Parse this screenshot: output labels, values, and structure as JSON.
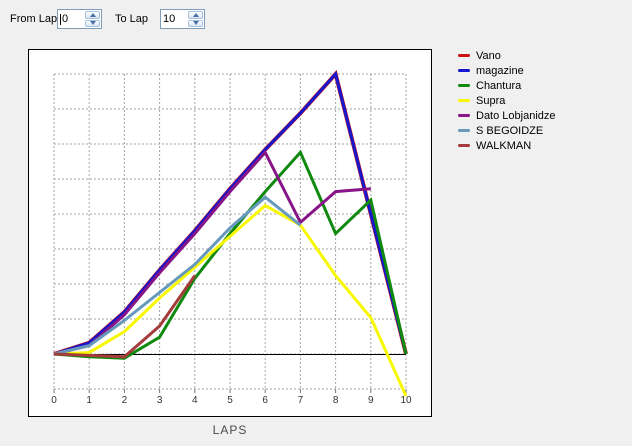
{
  "controls": {
    "from_lap_label": "From Lap",
    "from_lap_value": "0",
    "to_lap_label": "To Lap",
    "to_lap_value": "10"
  },
  "chart_data": {
    "type": "line",
    "title": "",
    "xlabel": "LAPS",
    "ylabel": "",
    "xlim": [
      0,
      10
    ],
    "ylim": [
      -25,
      112
    ],
    "x_ticks": [
      0,
      1,
      2,
      3,
      4,
      5,
      6,
      7,
      8,
      9,
      10
    ],
    "y_tick_labels_visible": false,
    "grid": true,
    "baseline_value": 0,
    "legend_position": "right",
    "series": [
      {
        "name": "Vano",
        "color": "#CC1111",
        "width": 4,
        "points": [
          [
            0,
            0
          ],
          [
            1,
            4
          ],
          [
            2,
            15
          ],
          [
            3,
            30
          ],
          [
            4,
            44
          ],
          [
            5,
            59
          ],
          [
            6,
            73
          ],
          [
            7,
            86
          ],
          [
            8,
            100
          ],
          [
            9,
            50
          ],
          [
            10,
            0
          ]
        ]
      },
      {
        "name": "magazine",
        "color": "#1616CC",
        "width": 3,
        "points": [
          [
            0,
            0
          ],
          [
            1,
            4
          ],
          [
            2,
            15
          ],
          [
            3,
            30
          ],
          [
            4,
            44
          ],
          [
            5,
            59
          ],
          [
            6,
            73
          ],
          [
            7,
            86
          ],
          [
            8,
            100
          ],
          [
            9,
            50
          ],
          [
            10,
            0
          ]
        ]
      },
      {
        "name": "Chantura",
        "color": "#0F8A0F",
        "width": 3,
        "points": [
          [
            0,
            0
          ],
          [
            1,
            -1
          ],
          [
            2,
            -1.5
          ],
          [
            3,
            6
          ],
          [
            4,
            27
          ],
          [
            5,
            43
          ],
          [
            6,
            58
          ],
          [
            7,
            72
          ],
          [
            8,
            43
          ],
          [
            9,
            55
          ],
          [
            10,
            0
          ]
        ]
      },
      {
        "name": "Supra",
        "color": "#F8F800",
        "width": 3,
        "points": [
          [
            0,
            0
          ],
          [
            1,
            0.5
          ],
          [
            2,
            8
          ],
          [
            3,
            20
          ],
          [
            4,
            31
          ],
          [
            5,
            42
          ],
          [
            6,
            53
          ],
          [
            7,
            46
          ],
          [
            8,
            28
          ],
          [
            9,
            13
          ],
          [
            10,
            -15
          ]
        ]
      },
      {
        "name": "Dato Lobjanidze",
        "color": "#871587",
        "width": 3,
        "points": [
          [
            0,
            0
          ],
          [
            1,
            3
          ],
          [
            2,
            14
          ],
          [
            3,
            29
          ],
          [
            4,
            43
          ],
          [
            5,
            58
          ],
          [
            6,
            72
          ],
          [
            7,
            47
          ],
          [
            8,
            58
          ],
          [
            9,
            59
          ]
        ]
      },
      {
        "name": "S BEGOIDZE",
        "color": "#6699BB",
        "width": 3,
        "points": [
          [
            0,
            0
          ],
          [
            1,
            3
          ],
          [
            2,
            12
          ],
          [
            3,
            22
          ],
          [
            4,
            32
          ],
          [
            5,
            45
          ],
          [
            6,
            56
          ],
          [
            7,
            46
          ]
        ]
      },
      {
        "name": "WALKMAN",
        "color": "#A43C3C",
        "width": 3,
        "points": [
          [
            0,
            0
          ],
          [
            1,
            -0.5
          ],
          [
            2,
            -1
          ],
          [
            3,
            10
          ],
          [
            4,
            28
          ]
        ]
      }
    ]
  }
}
